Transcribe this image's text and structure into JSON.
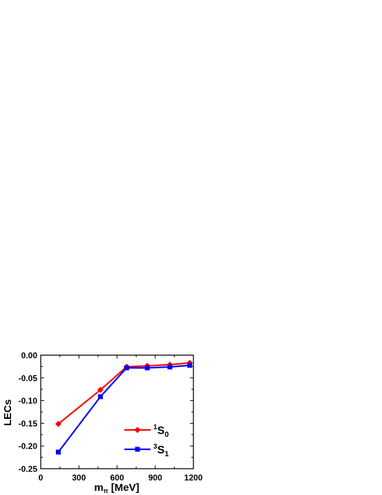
{
  "chart_data": {
    "type": "line",
    "title": "",
    "xlabel": {
      "main": "m",
      "sub": "π",
      "unit": "[MeV]"
    },
    "ylabel": "LECs",
    "xlim": [
      0,
      1200
    ],
    "ylim": [
      -0.25,
      0.0
    ],
    "xticks": [
      0,
      300,
      600,
      900,
      1200
    ],
    "yticks": [
      0.0,
      -0.05,
      -0.1,
      -0.15,
      -0.2,
      -0.25
    ],
    "xtick_labels": [
      "0",
      "300",
      "600",
      "900",
      "1200"
    ],
    "ytick_labels": [
      "0.00",
      "-0.05",
      "-0.10",
      "-0.15",
      "-0.20",
      "-0.25"
    ],
    "grid": false,
    "legend_position": "bottom-right",
    "series": [
      {
        "name": "1S0",
        "label_sup": "1",
        "label_main": "S",
        "label_sub": "0",
        "color": "#ff0000",
        "marker": "diamond",
        "x": [
          138,
          469,
          675,
          837,
          1015,
          1171
        ],
        "y": [
          -0.1515,
          -0.0765,
          -0.0255,
          -0.0235,
          -0.021,
          -0.017
        ]
      },
      {
        "name": "3S1",
        "label_sup": "3",
        "label_main": "S",
        "label_sub": "1",
        "color": "#0000ff",
        "marker": "square",
        "x": [
          138,
          469,
          675,
          837,
          1015,
          1171
        ],
        "y": [
          -0.2135,
          -0.0915,
          -0.028,
          -0.028,
          -0.026,
          -0.0225
        ]
      }
    ]
  }
}
